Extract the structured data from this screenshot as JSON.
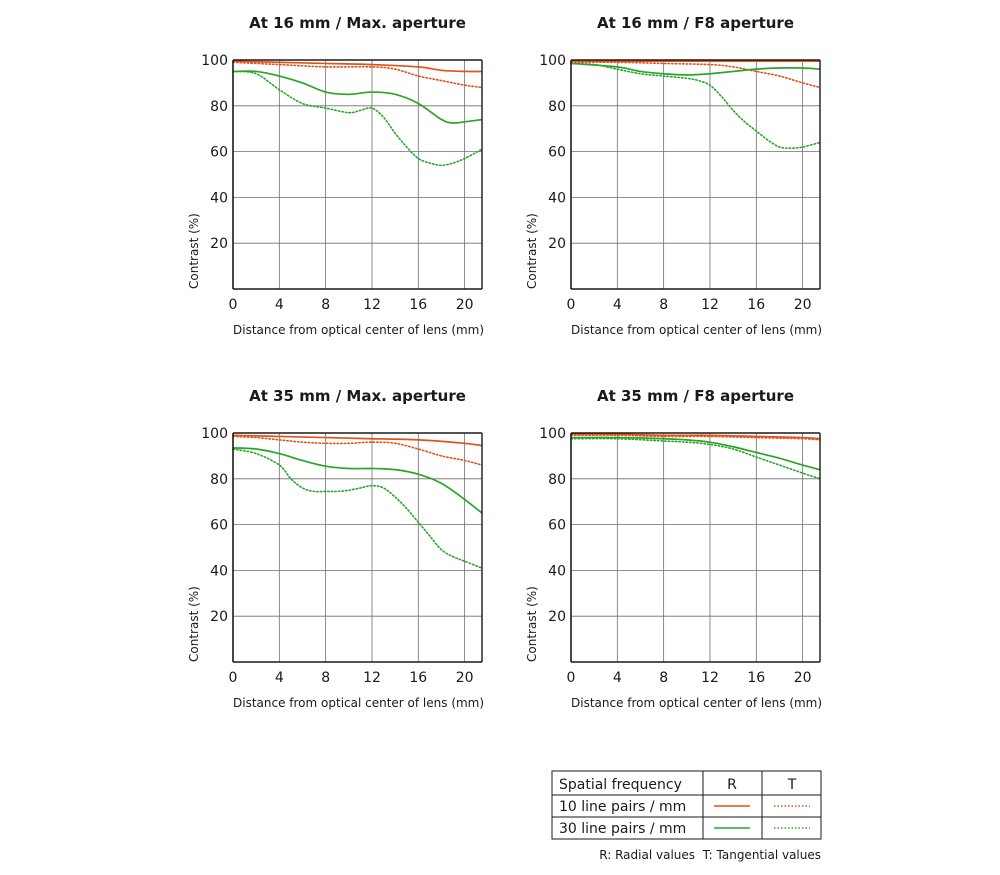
{
  "legend": {
    "header": "Spatial frequency",
    "col_r": "R",
    "col_t": "T",
    "row1_label": "10 line pairs / mm",
    "row2_label": "30 line pairs / mm",
    "note": "R: Radial values  T: Tangential values",
    "color_10lp": "#e2531b",
    "color_30lp": "#2aa52a"
  },
  "chart_data": [
    {
      "type": "line",
      "title": "At 16 mm / Max. aperture",
      "xlabel": "Distance from optical center of lens (mm)",
      "ylabel": "Contrast (%)",
      "xlim": [
        0,
        21.5
      ],
      "ylim": [
        0,
        100
      ],
      "xticks": [
        0,
        4,
        8,
        12,
        16,
        20
      ],
      "yticks": [
        20,
        40,
        60,
        80,
        100
      ],
      "grid": true,
      "series": [
        {
          "freq": "10",
          "kind": "R",
          "x": [
            0,
            4,
            8,
            12,
            16,
            18,
            20,
            21.5
          ],
          "y": [
            99.5,
            99,
            98.5,
            98,
            97,
            95.5,
            95,
            95
          ]
        },
        {
          "freq": "10",
          "kind": "T",
          "x": [
            0,
            4,
            8,
            12,
            14,
            16,
            18,
            20,
            21.5
          ],
          "y": [
            99,
            98,
            97,
            97,
            96,
            93,
            91,
            89,
            88
          ]
        },
        {
          "freq": "30",
          "kind": "R",
          "x": [
            0,
            2,
            4,
            6,
            8,
            10,
            12,
            14,
            16,
            18,
            19,
            20,
            21.5
          ],
          "y": [
            95,
            95,
            93,
            90,
            86,
            85,
            86,
            85,
            81,
            74,
            72.5,
            73,
            74
          ]
        },
        {
          "freq": "30",
          "kind": "T",
          "x": [
            0,
            2,
            4,
            6,
            8,
            10,
            11,
            12,
            13,
            14,
            15,
            16,
            17,
            18,
            19,
            20,
            21.5
          ],
          "y": [
            95,
            94,
            87,
            81,
            79,
            77,
            78,
            79,
            75,
            68,
            62,
            57,
            55,
            54,
            55,
            57,
            61
          ]
        }
      ]
    },
    {
      "type": "line",
      "title": "At 16 mm / F8 aperture",
      "xlabel": "Distance from optical center of lens (mm)",
      "ylabel": "Contrast (%)",
      "xlim": [
        0,
        21.5
      ],
      "ylim": [
        0,
        100
      ],
      "xticks": [
        0,
        4,
        8,
        12,
        16,
        20
      ],
      "yticks": [
        20,
        40,
        60,
        80,
        100
      ],
      "grid": true,
      "series": [
        {
          "freq": "10",
          "kind": "R",
          "x": [
            0,
            4,
            8,
            12,
            16,
            20,
            21.5
          ],
          "y": [
            99.5,
            99.5,
            99.5,
            99.5,
            99.5,
            99.5,
            99.5
          ]
        },
        {
          "freq": "10",
          "kind": "T",
          "x": [
            0,
            4,
            8,
            12,
            14,
            16,
            18,
            20,
            21.5
          ],
          "y": [
            99,
            99,
            98.5,
            98,
            97,
            95,
            93,
            90,
            88
          ]
        },
        {
          "freq": "30",
          "kind": "R",
          "x": [
            0,
            4,
            6,
            8,
            10,
            12,
            14,
            16,
            18,
            20,
            21.5
          ],
          "y": [
            98.5,
            97,
            95,
            94,
            93.5,
            94,
            95,
            96,
            96.5,
            96.5,
            96
          ]
        },
        {
          "freq": "30",
          "kind": "T",
          "x": [
            0,
            2,
            4,
            6,
            8,
            10,
            11,
            12,
            13,
            14,
            15,
            16,
            17,
            18,
            19,
            20,
            21.5
          ],
          "y": [
            98.5,
            98,
            96,
            94,
            93,
            92,
            91,
            89,
            84,
            78,
            73,
            69,
            65,
            62,
            61.5,
            62,
            64
          ]
        }
      ]
    },
    {
      "type": "line",
      "title": "At 35 mm / Max. aperture",
      "xlabel": "Distance from optical center of lens (mm)",
      "ylabel": "Contrast (%)",
      "xlim": [
        0,
        21.5
      ],
      "ylim": [
        0,
        100
      ],
      "xticks": [
        0,
        4,
        8,
        12,
        16,
        20
      ],
      "yticks": [
        20,
        40,
        60,
        80,
        100
      ],
      "grid": true,
      "series": [
        {
          "freq": "10",
          "kind": "R",
          "x": [
            0,
            4,
            8,
            12,
            16,
            20,
            21.5
          ],
          "y": [
            99,
            98.5,
            98,
            97.5,
            97,
            95.5,
            94.5
          ]
        },
        {
          "freq": "10",
          "kind": "T",
          "x": [
            0,
            2,
            4,
            6,
            8,
            10,
            12,
            14,
            16,
            18,
            20,
            21.5
          ],
          "y": [
            98.5,
            98,
            97,
            96,
            95.5,
            95.5,
            96,
            95.5,
            93,
            90,
            88,
            86
          ]
        },
        {
          "freq": "30",
          "kind": "R",
          "x": [
            0,
            2,
            4,
            6,
            8,
            10,
            12,
            14,
            16,
            18,
            20,
            21.5
          ],
          "y": [
            93.5,
            93,
            91,
            88,
            85.5,
            84.5,
            84.5,
            84,
            82,
            78,
            71,
            65
          ]
        },
        {
          "freq": "30",
          "kind": "T",
          "x": [
            0,
            2,
            4,
            5,
            6,
            7,
            8,
            9,
            10,
            11,
            12,
            13,
            14,
            15,
            16,
            17,
            18,
            19,
            20,
            21.5
          ],
          "y": [
            93,
            91,
            86,
            80,
            76,
            74.5,
            74.5,
            74.5,
            75,
            76,
            77,
            76,
            72,
            67,
            61,
            55,
            49,
            46,
            44,
            41
          ]
        }
      ]
    },
    {
      "type": "line",
      "title": "At 35 mm / F8 aperture",
      "xlabel": "Distance from optical center of lens (mm)",
      "ylabel": "Contrast (%)",
      "xlim": [
        0,
        21.5
      ],
      "ylim": [
        0,
        100
      ],
      "xticks": [
        0,
        4,
        8,
        12,
        16,
        20
      ],
      "yticks": [
        20,
        40,
        60,
        80,
        100
      ],
      "grid": true,
      "series": [
        {
          "freq": "10",
          "kind": "R",
          "x": [
            0,
            4,
            8,
            12,
            16,
            20,
            21.5
          ],
          "y": [
            99.5,
            99.5,
            99,
            99,
            98.5,
            98,
            97.5
          ]
        },
        {
          "freq": "10",
          "kind": "T",
          "x": [
            0,
            4,
            8,
            12,
            16,
            20,
            21.5
          ],
          "y": [
            99,
            99,
            98.5,
            98.5,
            98,
            97.5,
            97
          ]
        },
        {
          "freq": "30",
          "kind": "R",
          "x": [
            0,
            4,
            8,
            10,
            12,
            14,
            16,
            18,
            20,
            21.5
          ],
          "y": [
            98,
            98,
            97.5,
            97,
            96,
            94,
            91.5,
            89,
            86,
            84
          ]
        },
        {
          "freq": "30",
          "kind": "T",
          "x": [
            0,
            4,
            8,
            10,
            12,
            14,
            16,
            18,
            20,
            21.5
          ],
          "y": [
            97.5,
            97.5,
            96.5,
            96,
            95,
            93,
            89.5,
            86,
            82.5,
            80
          ]
        }
      ]
    }
  ]
}
